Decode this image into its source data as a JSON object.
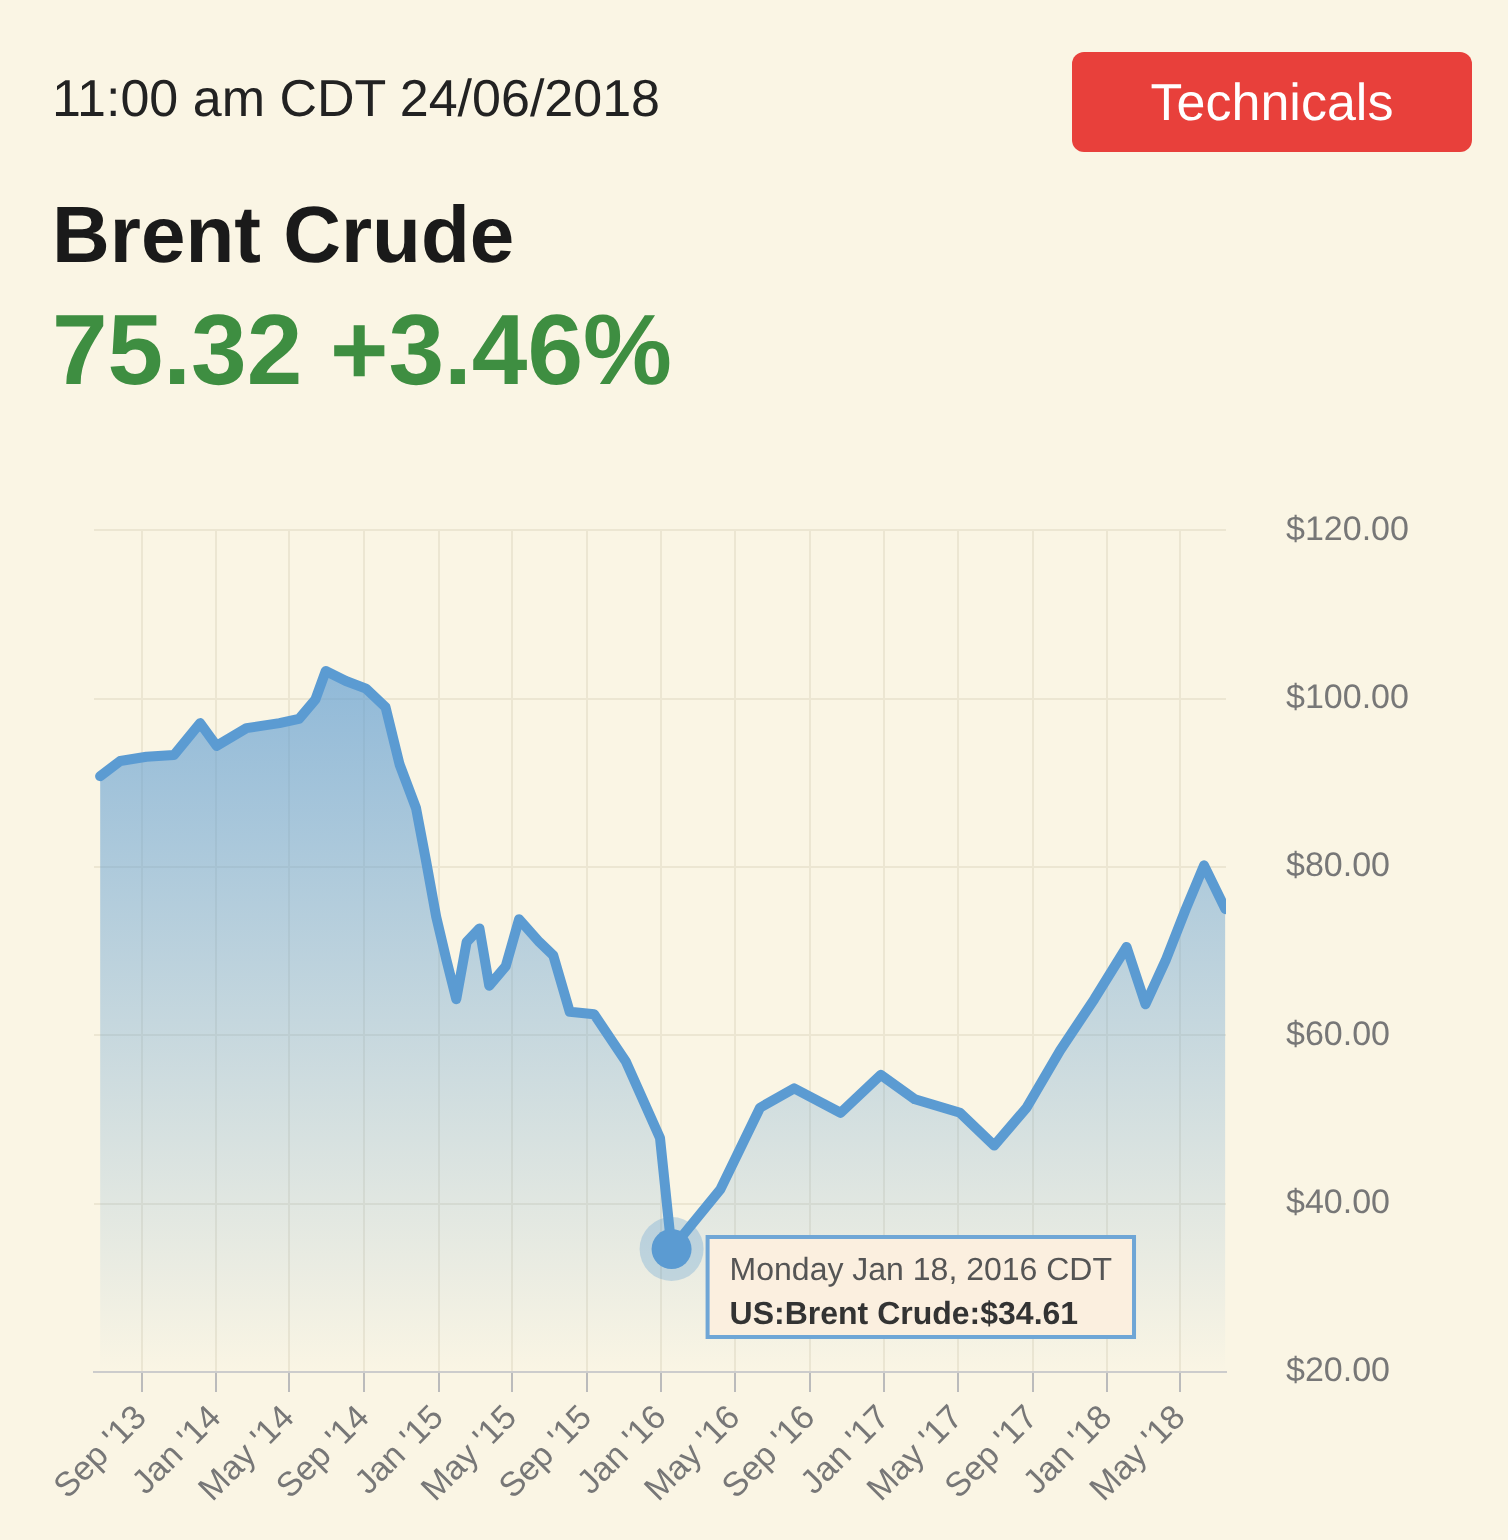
{
  "chart_data": {
    "type": "area",
    "title": "Brent Crude",
    "subtitle": "11:00 am CDT 24/06/2018",
    "annotations": [
      "75.32 +3.46%",
      "Technicals",
      {
        "text": "Monday Jan 18, 2016 CDT\nUS:Brent Crude:$34.61",
        "x": "2016-01-18",
        "y": 34.61
      }
    ],
    "x": [
      "2013-06-25",
      "2013-07-28",
      "2013-09-09",
      "2013-10-24",
      "2013-12-06",
      "2014-01-02",
      "2014-02-20",
      "2014-04-15",
      "2014-05-17",
      "2014-06-13",
      "2014-06-30",
      "2014-08-02",
      "2014-09-04",
      "2014-10-06",
      "2014-10-29",
      "2014-11-25",
      "2014-12-11",
      "2014-12-28",
      "2015-01-14",
      "2015-01-30",
      "2015-02-16",
      "2015-03-09",
      "2015-03-25",
      "2015-04-21",
      "2015-05-13",
      "2015-06-15",
      "2015-07-08",
      "2015-08-04",
      "2015-09-13",
      "2015-11-04",
      "2015-12-30",
      "2016-01-18",
      "2016-04-07",
      "2016-06-11",
      "2016-08-06",
      "2016-10-21",
      "2016-12-26",
      "2017-02-20",
      "2017-05-05",
      "2017-06-30",
      "2017-08-22",
      "2017-10-16",
      "2017-12-11",
      "2018-02-02",
      "2018-03-05",
      "2018-04-07",
      "2018-05-10",
      "2018-06-09",
      "2018-07-14"
    ],
    "series": [
      {
        "color": "#5b9bd2",
        "values": [
          90.8,
          92.6,
          93.1,
          93.3,
          97.1,
          94.4,
          96.5,
          97.1,
          97.6,
          99.9,
          103.3,
          102.1,
          101.2,
          99,
          92.2,
          87,
          80.9,
          74.1,
          68.9,
          64.3,
          71.1,
          72.7,
          65.9,
          68.2,
          73.8,
          71.1,
          69.5,
          62.8,
          62.5,
          56.9,
          47.8,
          34.61,
          41.7,
          51.4,
          53.7,
          50.8,
          55.3,
          52.4,
          50.8,
          46.9,
          51.4,
          58.2,
          64.3,
          70.5,
          63.7,
          68.9,
          75,
          80.2,
          75
        ]
      }
    ],
    "xlim": [
      "2013-06-15",
      "2018-07-15"
    ],
    "xticks": [
      {
        "value": "2013-09",
        "label": "Sep '13"
      },
      {
        "value": "2014-01",
        "label": "Jan '14"
      },
      {
        "value": "2014-05",
        "label": "May '14"
      },
      {
        "value": "2014-09",
        "label": "Sep '14"
      },
      {
        "value": "2015-01",
        "label": "Jan '15"
      },
      {
        "value": "2015-05",
        "label": "May '15"
      },
      {
        "value": "2015-09",
        "label": "Sep '15"
      },
      {
        "value": "2016-01",
        "label": "Jan '16"
      },
      {
        "value": "2016-05",
        "label": "May '16"
      },
      {
        "value": "2016-09",
        "label": "Sep '16"
      },
      {
        "value": "2017-01",
        "label": "Jan '17"
      },
      {
        "value": "2017-05",
        "label": "May '17"
      },
      {
        "value": "2017-09",
        "label": "Sep '17"
      },
      {
        "value": "2018-01",
        "label": "Jan '18"
      },
      {
        "value": "2018-05",
        "label": "May '18"
      }
    ],
    "ylim": [
      20,
      120
    ],
    "yticks": [
      {
        "value": 20,
        "label": "$20.00"
      },
      {
        "value": 40,
        "label": "$40.00"
      },
      {
        "value": 60,
        "label": "$60.00"
      },
      {
        "value": 80,
        "label": "$80.00"
      },
      {
        "value": 100,
        "label": "$100.00"
      },
      {
        "value": 120,
        "label": "$120.00"
      }
    ],
    "grid": true,
    "legend": false,
    "marker": "none",
    "line_style": "solid"
  }
}
